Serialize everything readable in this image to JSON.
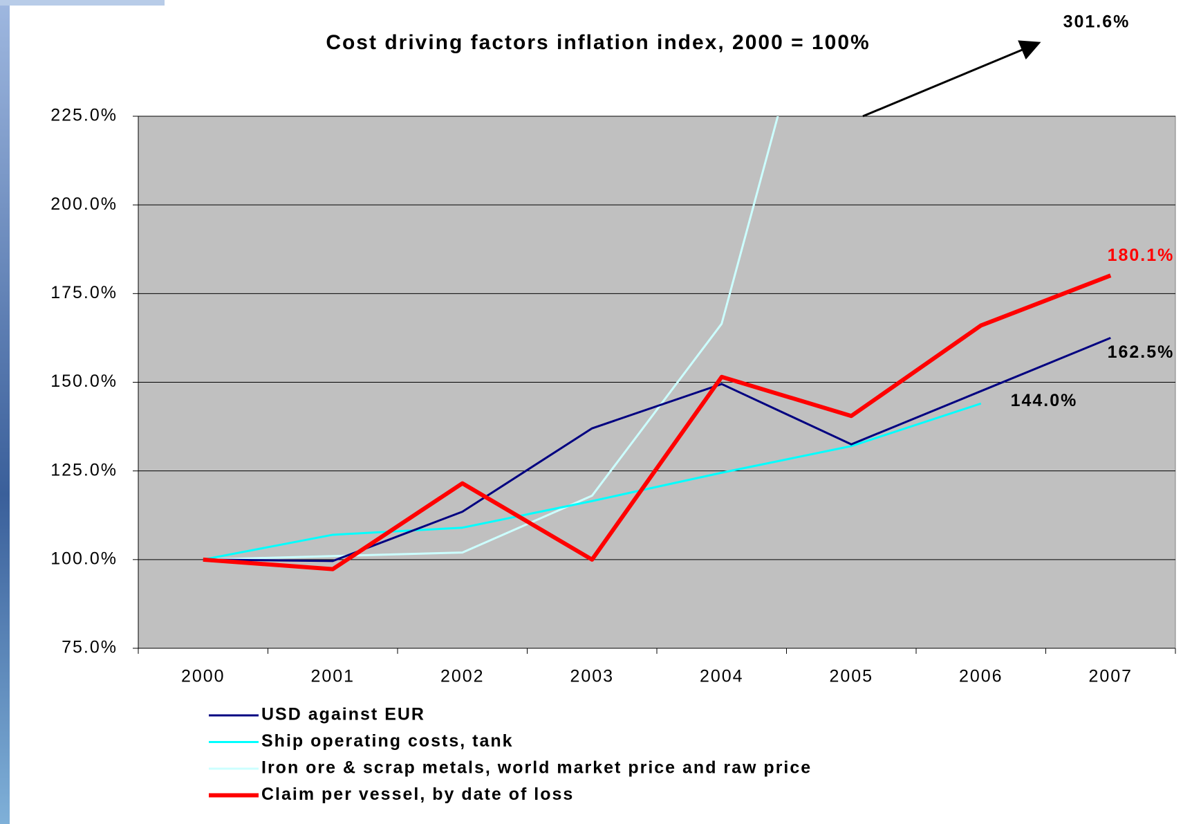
{
  "chart_data": {
    "type": "line",
    "title": "Cost driving factors inflation index,  2000 = 100%",
    "categories": [
      "2000",
      "2001",
      "2002",
      "2003",
      "2004",
      "2005",
      "2006",
      "2007"
    ],
    "series": [
      {
        "name": "USD against EUR",
        "color": "#000080",
        "width": 3,
        "values": [
          100,
          99.6,
          113.5,
          137,
          149.5,
          132.5,
          147.5,
          162.5
        ],
        "value_labels": [
          null,
          null,
          null,
          null,
          null,
          null,
          null,
          "162.5%"
        ]
      },
      {
        "name": "Ship operating costs, tank",
        "color": "#00ffff",
        "width": 3,
        "values": [
          100,
          107,
          109,
          116.5,
          124.5,
          132,
          144,
          null
        ],
        "value_labels": [
          null,
          null,
          null,
          null,
          null,
          null,
          "144.0%",
          null
        ]
      },
      {
        "name": "Iron ore & scrap metals, world market price and raw price",
        "color": "#ccffff",
        "width": 3,
        "values": [
          100,
          101,
          102,
          118,
          166.5,
          301.6,
          null,
          null
        ],
        "value_labels": [
          null,
          null,
          null,
          null,
          null,
          "301.6%",
          null,
          null
        ]
      },
      {
        "name": "Claim per vessel, by date of loss",
        "color": "#ff0000",
        "width": 6,
        "values": [
          100,
          97.3,
          121.5,
          100,
          151.5,
          140.5,
          166,
          180.1
        ],
        "value_labels": [
          null,
          null,
          null,
          null,
          null,
          null,
          null,
          "180.1%"
        ]
      }
    ],
    "ylim": [
      75,
      225
    ],
    "yticks": [
      {
        "value": 75,
        "label": "75.0%"
      },
      {
        "value": 100,
        "label": "100.0%"
      },
      {
        "value": 125,
        "label": "125.0%"
      },
      {
        "value": 150,
        "label": "150.0%"
      },
      {
        "value": 175,
        "label": "175.0%"
      },
      {
        "value": 200,
        "label": "200.0%"
      },
      {
        "value": 225,
        "label": "225.0%"
      }
    ],
    "grid": true,
    "plot_background": "#c0c0c0"
  }
}
